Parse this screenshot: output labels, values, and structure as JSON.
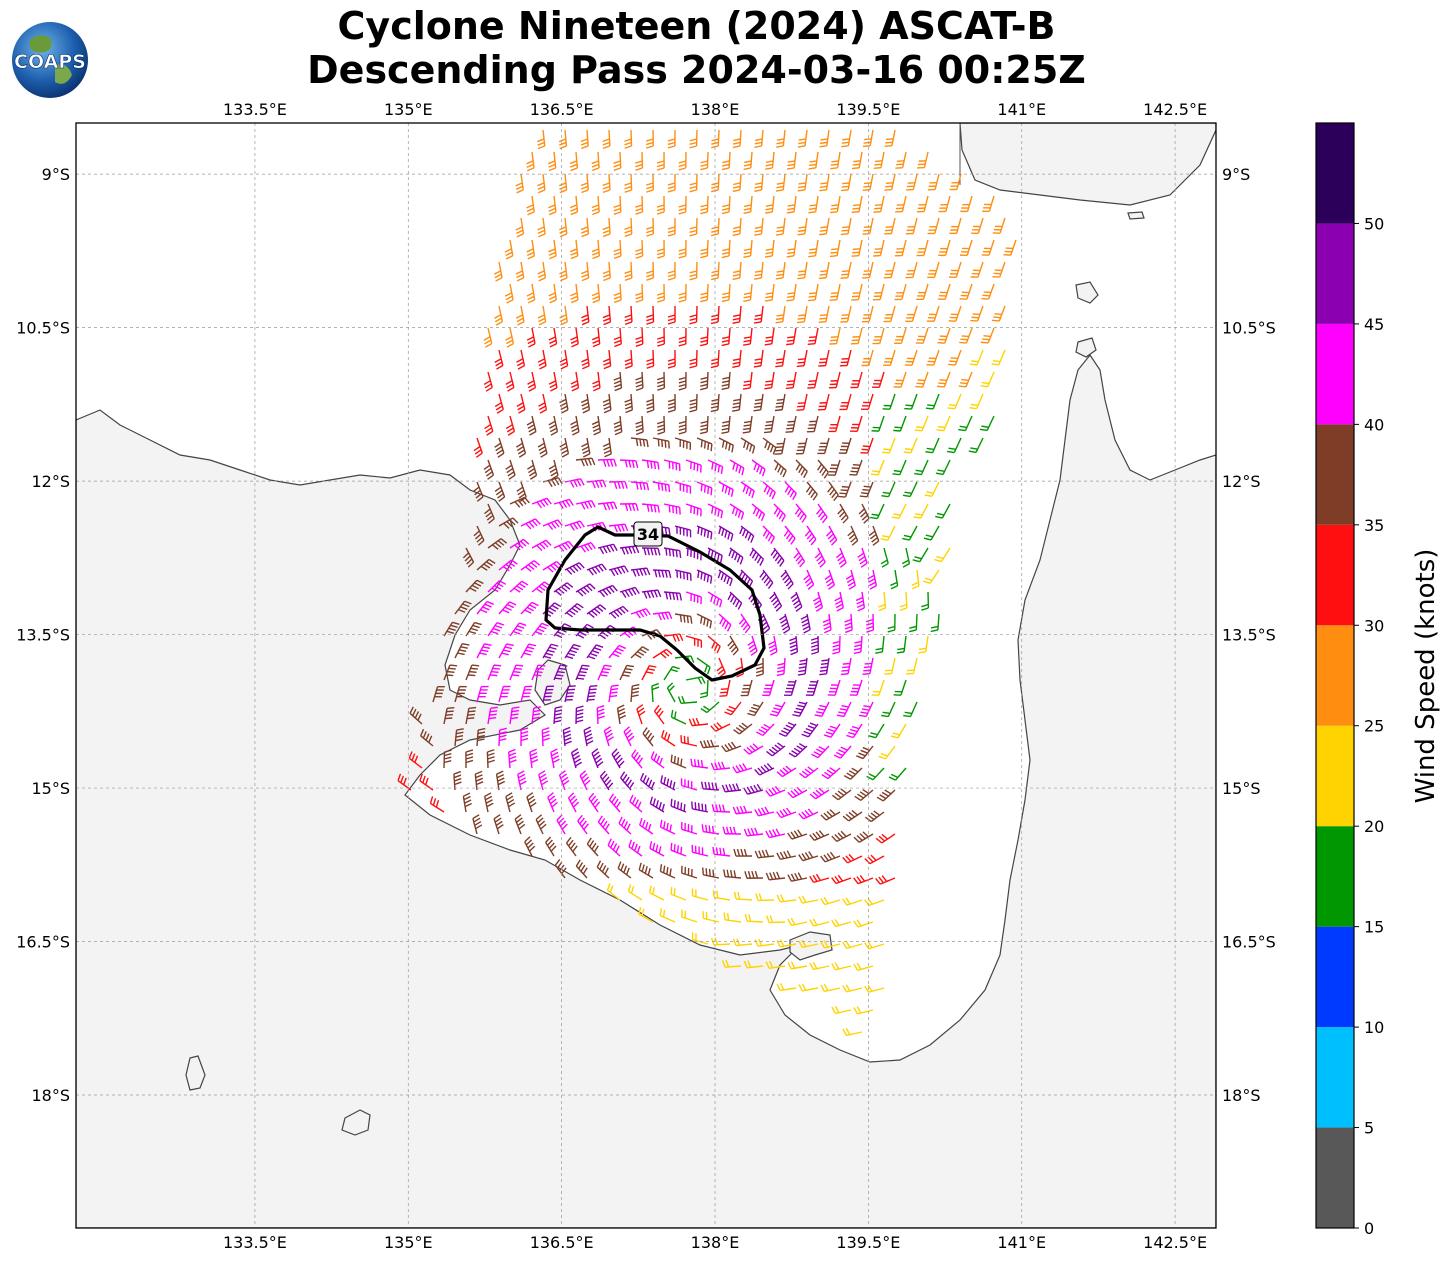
{
  "header": {
    "title_line1": "Cyclone Nineteen (2024) ASCAT-B",
    "title_line2": "Descending Pass 2024-03-16 00:25Z",
    "logo_text": "COAPS"
  },
  "map": {
    "lon_range": [
      131.75,
      142.9
    ],
    "lat_range": [
      -19.3,
      -8.5
    ],
    "lon_ticks": [
      "133.5°E",
      "135°E",
      "136.5°E",
      "138°E",
      "139.5°E",
      "141°E",
      "142.5°E"
    ],
    "lat_ticks": [
      "9°S",
      "10.5°S",
      "12°S",
      "13.5°S",
      "15°S",
      "16.5°S",
      "18°S"
    ],
    "gridlines": true,
    "contour_label": "34",
    "colorbar": {
      "label": "Wind Speed (knots)",
      "ticks": [
        "0",
        "5",
        "10",
        "15",
        "20",
        "25",
        "30",
        "35",
        "40",
        "45",
        "50"
      ],
      "colors": [
        "#585858",
        "#00bfff",
        "#0039ff",
        "#009700",
        "#ffd300",
        "#ff8e10",
        "#ff0f0f",
        "#7f3d27",
        "#ff00ff",
        "#8b00b0",
        "#2c005a"
      ]
    }
  },
  "chart_data": {
    "type": "wind_barbs",
    "title": "Cyclone Nineteen (2024) ASCAT-B Descending Pass 2024-03-16 00:25Z",
    "units": "knots",
    "storm_center": {
      "lon": 137.75,
      "lat": -14.0
    },
    "contour_34kt_label": "34",
    "wind_speed_bins": [
      0,
      5,
      10,
      15,
      20,
      25,
      30,
      35,
      40,
      45,
      50,
      55
    ]
  }
}
